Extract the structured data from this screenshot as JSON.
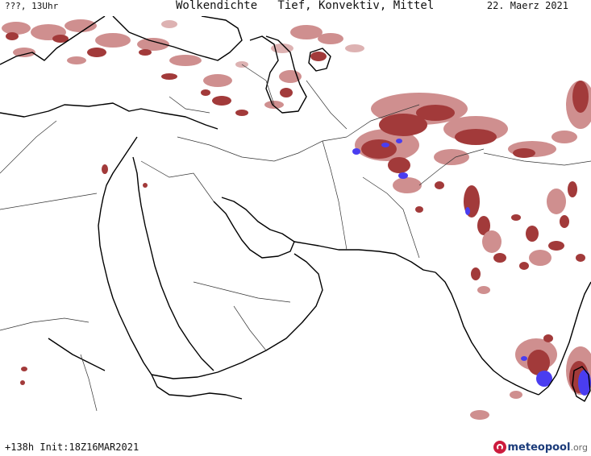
{
  "header": {
    "left": "???, 13Uhr",
    "title": "Wolkendichte   Tief, Konvektiv, Mittel",
    "date": "22. Maerz 2021"
  },
  "footer": {
    "run_info": "+138h Init:18Z16MAR2021",
    "logo_text": "meteopool",
    "logo_suffix": ".org"
  },
  "colors": {
    "cloud_low": "#a23a3a",
    "cloud_light": "#cf8f8f",
    "cloud_pink": "#ddb2b2",
    "convective": "#4a3df0",
    "coastline": "#000000",
    "border": "#333333"
  },
  "legend_icons": [
    "logo-icon"
  ]
}
